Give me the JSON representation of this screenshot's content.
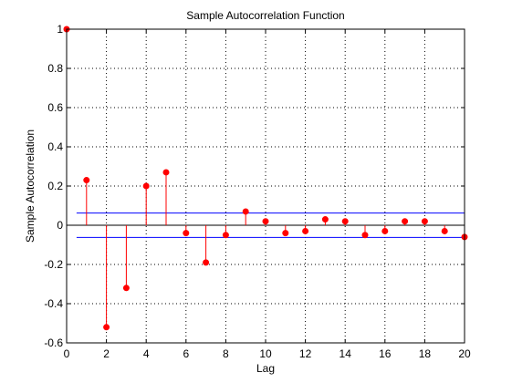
{
  "chart_data": {
    "type": "stem",
    "title": "Sample Autocorrelation Function",
    "xlabel": "Lag",
    "ylabel": "Sample Autocorrelation",
    "xlim": [
      0,
      20
    ],
    "ylim": [
      -0.6,
      1
    ],
    "xticks": [
      0,
      2,
      4,
      6,
      8,
      10,
      12,
      14,
      16,
      18,
      20
    ],
    "xtick_labels": [
      "0",
      "2",
      "4",
      "6",
      "8",
      "10",
      "12",
      "14",
      "16",
      "18",
      "20"
    ],
    "yticks": [
      -0.6,
      -0.4,
      -0.2,
      0,
      0.2,
      0.4,
      0.6,
      0.8,
      1
    ],
    "ytick_labels": [
      "-0.6",
      "-0.4",
      "-0.2",
      "0",
      "0.2",
      "0.4",
      "0.6",
      "0.8",
      "1"
    ],
    "grid": true,
    "lags": [
      0,
      1,
      2,
      3,
      4,
      5,
      6,
      7,
      8,
      9,
      10,
      11,
      12,
      13,
      14,
      15,
      16,
      17,
      18,
      19,
      20
    ],
    "values": [
      1.0,
      0.23,
      -0.52,
      -0.32,
      0.2,
      0.27,
      -0.04,
      -0.19,
      -0.05,
      0.07,
      0.02,
      -0.04,
      -0.03,
      0.03,
      0.02,
      -0.05,
      -0.03,
      0.02,
      0.02,
      -0.03,
      -0.06
    ],
    "confidence_bounds": [
      0.062,
      -0.062
    ],
    "colors": {
      "stem": "#ff0000",
      "bounds": "#0000ff",
      "axes": "#000000",
      "grid": "#000000"
    }
  }
}
